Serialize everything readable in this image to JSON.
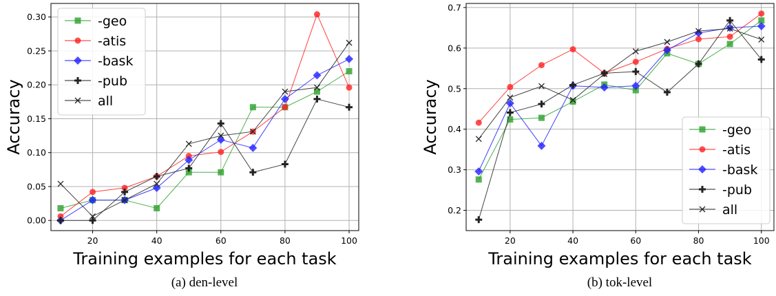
{
  "chart_data": [
    {
      "type": "line",
      "caption": "(a) den-level",
      "xlabel": "Training examples for each task",
      "ylabel": "Accuracy",
      "xlim": [
        7,
        103
      ],
      "ylim": [
        -0.015,
        0.32
      ],
      "xticks": [
        20,
        40,
        60,
        80,
        100
      ],
      "xtick_labels": [
        "20",
        "40",
        "60",
        "80",
        "100"
      ],
      "yticks": [
        0.0,
        0.05,
        0.1,
        0.15,
        0.2,
        0.25,
        0.3
      ],
      "ytick_labels": [
        "0.00",
        "0.05",
        "0.10",
        "0.15",
        "0.20",
        "0.25",
        "0.30"
      ],
      "grid": true,
      "legend_position": "top-left",
      "x": [
        10,
        20,
        30,
        40,
        50,
        60,
        70,
        80,
        90,
        100
      ],
      "series": [
        {
          "name": "-geo",
          "color": "#2ca02c",
          "marker": "square",
          "values": [
            0.018,
            0.03,
            0.03,
            0.018,
            0.071,
            0.071,
            0.167,
            0.167,
            0.19,
            0.22
          ]
        },
        {
          "name": "-atis",
          "color": "#ff2020",
          "marker": "circle",
          "values": [
            0.006,
            0.042,
            0.048,
            0.065,
            0.095,
            0.101,
            0.131,
            0.167,
            0.304,
            0.196
          ]
        },
        {
          "name": "-bask",
          "color": "#2020ff",
          "marker": "diamond",
          "values": [
            0.0,
            0.03,
            0.03,
            0.048,
            0.089,
            0.119,
            0.107,
            0.179,
            0.214,
            0.238
          ]
        },
        {
          "name": "-pub",
          "color": "#222222",
          "marker": "plus",
          "values": [
            0.0,
            0.0,
            0.042,
            0.065,
            0.077,
            0.143,
            0.071,
            0.083,
            0.179,
            0.167
          ]
        },
        {
          "name": "all",
          "color": "#222222",
          "marker": "x",
          "values": [
            0.054,
            0.006,
            0.03,
            0.054,
            0.113,
            0.125,
            0.131,
            0.19,
            0.196,
            0.262
          ]
        }
      ]
    },
    {
      "type": "line",
      "caption": "(b) tok-level",
      "xlabel": "Training examples for each task",
      "ylabel": "Accuracy",
      "xlim": [
        6,
        104
      ],
      "ylim": [
        0.15,
        0.71
      ],
      "xticks": [
        20,
        40,
        60,
        80,
        100
      ],
      "xtick_labels": [
        "20",
        "40",
        "60",
        "80",
        "100"
      ],
      "yticks": [
        0.2,
        0.3,
        0.4,
        0.5,
        0.6,
        0.7
      ],
      "ytick_labels": [
        "0.2",
        "0.3",
        "0.4",
        "0.5",
        "0.6",
        "0.7"
      ],
      "grid": true,
      "legend_position": "bottom-right",
      "x": [
        10,
        20,
        30,
        40,
        50,
        60,
        70,
        80,
        90,
        100
      ],
      "series": [
        {
          "name": "-geo",
          "color": "#2ca02c",
          "marker": "square",
          "values": [
            0.276,
            0.424,
            0.428,
            0.468,
            0.51,
            0.496,
            0.587,
            0.561,
            0.61,
            0.668
          ]
        },
        {
          "name": "-atis",
          "color": "#ff2020",
          "marker": "circle",
          "values": [
            0.416,
            0.504,
            0.558,
            0.597,
            0.538,
            0.566,
            0.598,
            0.622,
            0.628,
            0.685
          ]
        },
        {
          "name": "-bask",
          "color": "#2020ff",
          "marker": "diamond",
          "values": [
            0.296,
            0.464,
            0.359,
            0.507,
            0.503,
            0.507,
            0.595,
            0.637,
            0.65,
            0.654
          ]
        },
        {
          "name": "-pub",
          "color": "#222222",
          "marker": "plus",
          "values": [
            0.177,
            0.441,
            0.462,
            0.509,
            0.538,
            0.542,
            0.491,
            0.561,
            0.668,
            0.572
          ]
        },
        {
          "name": "all",
          "color": "#222222",
          "marker": "x",
          "values": [
            0.376,
            0.478,
            0.506,
            0.472,
            0.536,
            0.592,
            0.615,
            0.642,
            0.648,
            0.621
          ]
        }
      ]
    }
  ]
}
